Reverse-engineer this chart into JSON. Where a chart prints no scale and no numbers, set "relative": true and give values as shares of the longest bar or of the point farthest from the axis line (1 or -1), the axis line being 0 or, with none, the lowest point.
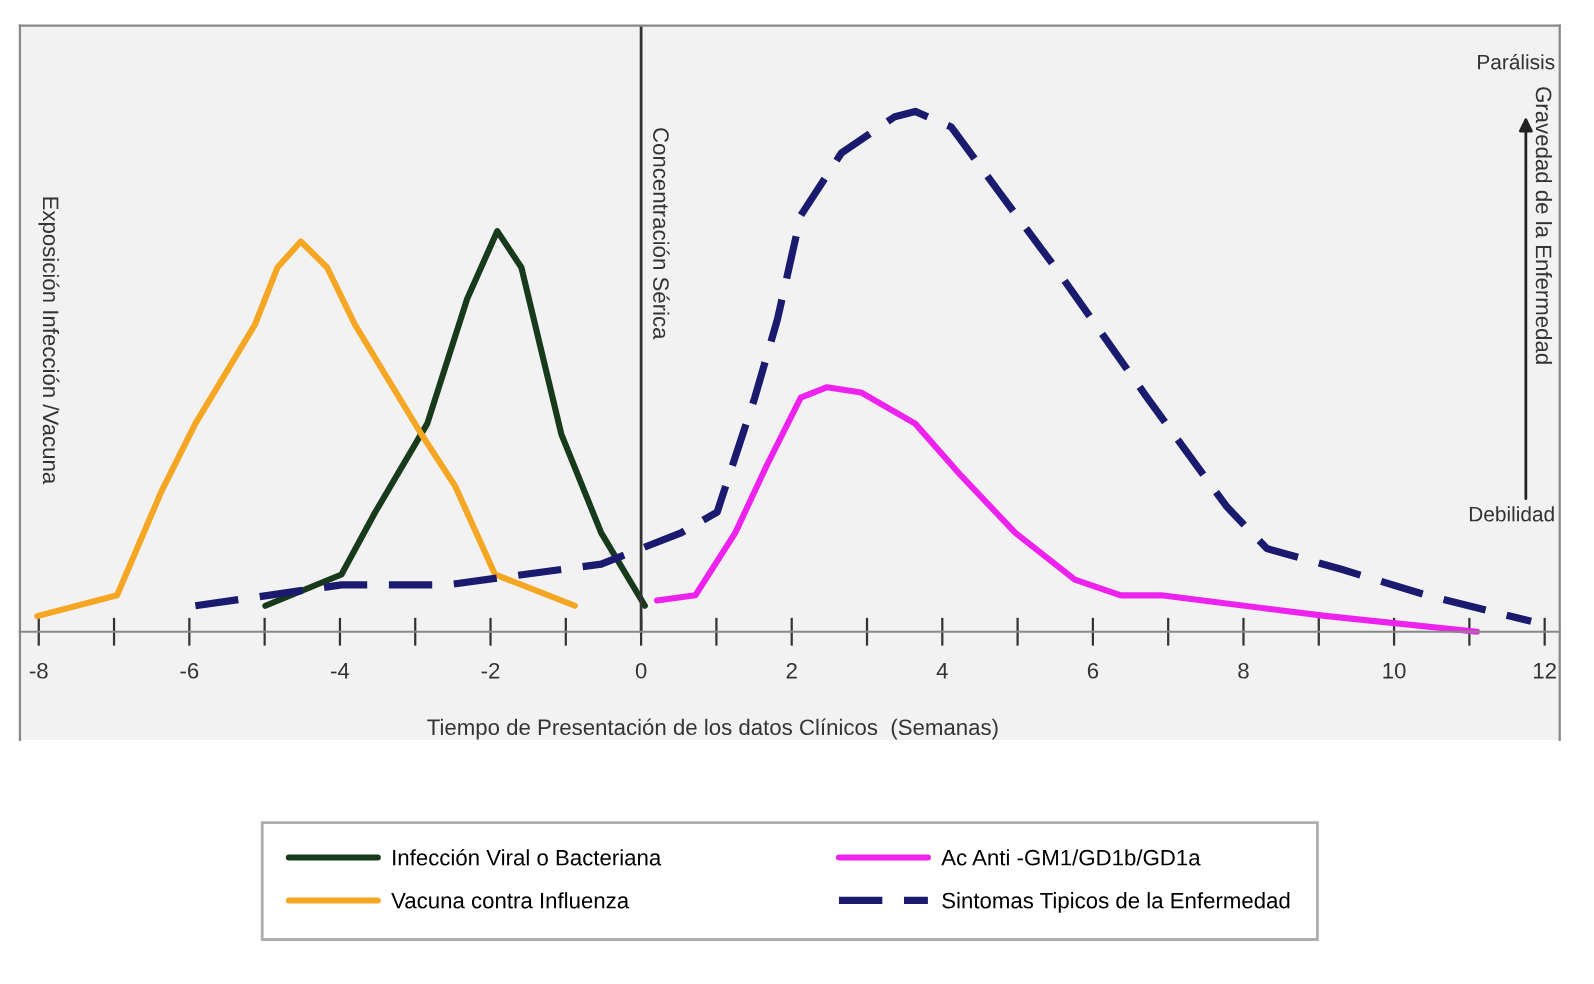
{
  "chart_data": {
    "type": "line",
    "relative": true,
    "xlabel": "Tiempo de Presentación de los datos Clínicos  (Semanas)",
    "ylabel": "Exposición Infección /Vacuna",
    "y2label": "Gravedad de la Enfermedad",
    "annotations": [
      "Parálisis",
      "Debilidad"
    ],
    "xlim": [
      -8.25,
      12.2
    ],
    "xticks": [
      -8,
      {
        "value": -7,
        "label": null
      },
      -6,
      {
        "value": -5,
        "label": null
      },
      -4,
      {
        "value": -3,
        "label": null
      },
      -2,
      {
        "value": -1,
        "label": null
      },
      0,
      {
        "value": 1,
        "label": null
      },
      2,
      {
        "value": 3,
        "label": null
      },
      4,
      {
        "value": 5,
        "label": null
      },
      6,
      {
        "value": 7,
        "label": null
      },
      8,
      {
        "value": 9,
        "label": null
      },
      10,
      {
        "value": 11,
        "label": null
      },
      12
    ],
    "ref_lines": [
      {
        "axis": "x",
        "value": 0,
        "label": "Concentración Sérica",
        "color": "#333333",
        "line_style": "solid"
      }
    ],
    "legend": "bottom",
    "marker": "none",
    "series": [
      {
        "name": "Infección Viral o Bacteriana",
        "color": "#173a1c",
        "line_style": "solid",
        "x": [
          -4.99,
          -3.98,
          -3.53,
          -2.84,
          -2.31,
          -1.91,
          -1.59,
          -1.06,
          -0.53,
          0.05
        ],
        "values": [
          0.05,
          0.11,
          0.23,
          0.4,
          0.64,
          0.77,
          0.7,
          0.38,
          0.19,
          0.05
        ]
      },
      {
        "name": "Vacuna contra Influenza",
        "color": "#f5a623",
        "line_style": "solid",
        "x": [
          -8.02,
          -6.96,
          -6.37,
          -5.92,
          -5.13,
          -4.83,
          -4.52,
          -4.17,
          -3.8,
          -2.92,
          -2.47,
          -1.94,
          -0.88
        ],
        "values": [
          0.03,
          0.07,
          0.27,
          0.4,
          0.59,
          0.7,
          0.75,
          0.7,
          0.59,
          0.38,
          0.28,
          0.11,
          0.05
        ]
      },
      {
        "name": "Ac Anti -GM1/GD1b/GD1a",
        "color": "#ee22ee",
        "line_style": "solid",
        "x": [
          0.21,
          0.72,
          1.25,
          1.67,
          2.12,
          2.47,
          2.92,
          3.64,
          4.25,
          4.97,
          5.76,
          6.37,
          6.91,
          9.11,
          11.1
        ],
        "values": [
          0.06,
          0.07,
          0.19,
          0.32,
          0.45,
          0.47,
          0.46,
          0.4,
          0.3,
          0.19,
          0.1,
          0.07,
          0.07,
          0.03,
          0.0
        ]
      },
      {
        "name": "Sintomas Tipicos de la Enfermedad",
        "color": "#1a1a6e",
        "line_style": "dashed",
        "x": [
          -5.92,
          -3.98,
          -2.58,
          -0.53,
          0.53,
          1.01,
          1.51,
          1.81,
          2.12,
          2.66,
          3.37,
          3.64,
          4.12,
          4.78,
          5.5,
          6.72,
          7.78,
          8.31,
          9.3,
          10.44,
          11.82
        ],
        "values": [
          0.05,
          0.09,
          0.09,
          0.13,
          0.19,
          0.23,
          0.45,
          0.6,
          0.8,
          0.92,
          0.99,
          1.0,
          0.97,
          0.84,
          0.7,
          0.45,
          0.24,
          0.16,
          0.12,
          0.07,
          0.02
        ]
      }
    ]
  }
}
